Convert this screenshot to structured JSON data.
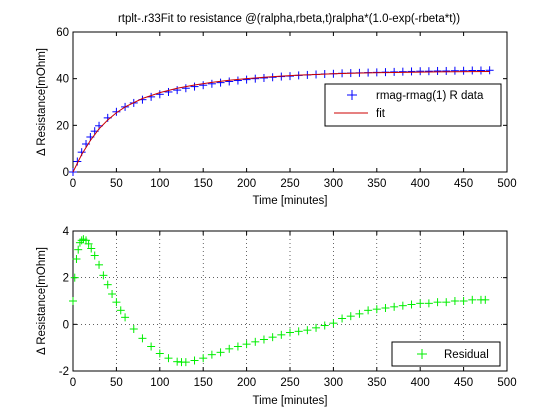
{
  "chart_data": [
    {
      "type": "scatter",
      "title": "rtplt-.r33Fit to resistance @(ralpha,rbeta,t)ralpha*(1.0-exp(-rbeta*t))",
      "xlabel": "Time [minutes]",
      "ylabel": "Δ Resistance[mOhm]",
      "xlim": [
        0,
        500
      ],
      "ylim": [
        0,
        60
      ],
      "xticks": [
        "0",
        "50",
        "100",
        "150",
        "200",
        "250",
        "300",
        "350",
        "400",
        "450",
        "500"
      ],
      "yticks": [
        "0",
        "20",
        "40",
        "60"
      ],
      "grid": false,
      "legend_position": "right",
      "series": [
        {
          "name": "rmag-rmag(1) R data",
          "marker": "+",
          "color": "#0000ff",
          "x": [
            0,
            5,
            10,
            15,
            20,
            25,
            30,
            40,
            50,
            60,
            70,
            80,
            90,
            100,
            110,
            120,
            130,
            140,
            150,
            160,
            170,
            180,
            190,
            200,
            210,
            220,
            230,
            240,
            250,
            260,
            270,
            280,
            290,
            300,
            310,
            320,
            330,
            340,
            350,
            360,
            370,
            380,
            390,
            400,
            410,
            420,
            430,
            440,
            450,
            460,
            470,
            480
          ],
          "y": [
            0,
            4.5,
            8.5,
            12,
            15,
            17.5,
            19.8,
            23.2,
            25.8,
            27.9,
            29.6,
            31,
            32.2,
            33.3,
            34.3,
            35.1,
            35.9,
            36.6,
            37.2,
            37.8,
            38.3,
            38.8,
            39.2,
            39.6,
            40,
            40.3,
            40.6,
            40.9,
            41.1,
            41.4,
            41.6,
            41.8,
            42,
            42.1,
            42.3,
            42.4,
            42.5,
            42.6,
            42.7,
            42.8,
            42.9,
            43,
            43.1,
            43.2,
            43.2,
            43.3,
            43.3,
            43.4,
            43.4,
            43.5,
            43.5,
            43.6
          ]
        },
        {
          "name": "fit",
          "marker": "line",
          "color": "#cc0000",
          "x": [
            0,
            10,
            20,
            30,
            40,
            50,
            60,
            80,
            100,
            120,
            140,
            160,
            180,
            200,
            220,
            240,
            260,
            280,
            300,
            320,
            340,
            360,
            380,
            400,
            420,
            440,
            460,
            480
          ],
          "y": [
            0,
            7.5,
            13.5,
            18.5,
            22.3,
            25.4,
            27.9,
            31.5,
            34,
            35.9,
            37.3,
            38.4,
            39.3,
            40,
            40.6,
            41.1,
            41.5,
            41.8,
            42.1,
            42.3,
            42.5,
            42.6,
            42.7,
            42.8,
            42.9,
            42.95,
            43,
            43.05
          ]
        }
      ]
    },
    {
      "type": "scatter",
      "title": "",
      "xlabel": "Time [minutes]",
      "ylabel": "Δ Resistance[mOhm]",
      "xlim": [
        0,
        500
      ],
      "ylim": [
        -2,
        4
      ],
      "xticks": [
        "0",
        "50",
        "100",
        "150",
        "200",
        "250",
        "300",
        "350",
        "400",
        "450",
        "500"
      ],
      "yticks": [
        "-2",
        "0",
        "2",
        "4"
      ],
      "grid": true,
      "legend_position": "bottom-right",
      "series": [
        {
          "name": "Residual",
          "marker": "+",
          "color": "#00ee00",
          "x": [
            0,
            2,
            4,
            6,
            8,
            10,
            12,
            15,
            18,
            21,
            25,
            30,
            35,
            40,
            45,
            50,
            55,
            60,
            70,
            80,
            90,
            100,
            110,
            120,
            125,
            130,
            140,
            150,
            160,
            170,
            180,
            190,
            200,
            210,
            220,
            230,
            240,
            250,
            260,
            270,
            280,
            290,
            300,
            310,
            320,
            330,
            340,
            350,
            360,
            370,
            380,
            390,
            400,
            410,
            420,
            430,
            440,
            450,
            460,
            470,
            475
          ],
          "y": [
            1,
            2,
            2.8,
            3.2,
            3.5,
            3.6,
            3.65,
            3.6,
            3.45,
            3.25,
            2.95,
            2.55,
            2.1,
            1.7,
            1.3,
            0.95,
            0.6,
            0.3,
            -0.2,
            -0.6,
            -0.95,
            -1.25,
            -1.45,
            -1.6,
            -1.62,
            -1.62,
            -1.55,
            -1.45,
            -1.3,
            -1.2,
            -1.05,
            -0.95,
            -0.85,
            -0.75,
            -0.65,
            -0.55,
            -0.45,
            -0.35,
            -0.3,
            -0.25,
            -0.15,
            -0.05,
            0.05,
            0.25,
            0.35,
            0.45,
            0.6,
            0.65,
            0.7,
            0.75,
            0.8,
            0.85,
            0.9,
            0.9,
            0.95,
            0.95,
            1,
            1,
            1.05,
            1.05,
            1.05
          ]
        }
      ]
    }
  ]
}
